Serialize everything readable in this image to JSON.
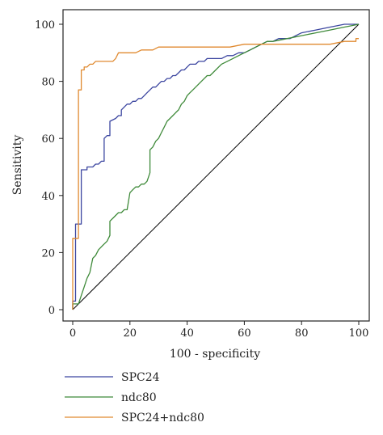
{
  "chart_data": {
    "type": "line",
    "title": "",
    "xlabel": "100 - specificity",
    "ylabel": "Sensitivity",
    "xlim": [
      0,
      100
    ],
    "ylim": [
      0,
      100
    ],
    "xticks": [
      0,
      20,
      40,
      60,
      80,
      100
    ],
    "yticks": [
      0,
      20,
      40,
      60,
      80,
      100
    ],
    "grid": false,
    "legend_position": "bottom",
    "series": [
      {
        "name": "SPC24",
        "color": "#3c46a0",
        "x": [
          0,
          0,
          1,
          1,
          2,
          2,
          3,
          3,
          5,
          5,
          7,
          8,
          9,
          10,
          11,
          11,
          12,
          13,
          13,
          15,
          16,
          17,
          17,
          18,
          19,
          20,
          21,
          22,
          23,
          24,
          25,
          26,
          27,
          28,
          29,
          30,
          31,
          32,
          33,
          34,
          35,
          36,
          37,
          38,
          39,
          40,
          41,
          42,
          43,
          44,
          45,
          46,
          47,
          48,
          50,
          52,
          54,
          56,
          58,
          60,
          62,
          64,
          66,
          68,
          70,
          72,
          74,
          76,
          78,
          80,
          85,
          90,
          95,
          100
        ],
        "y": [
          0,
          3,
          3,
          30,
          30,
          30,
          30,
          49,
          49,
          50,
          50,
          51,
          51,
          52,
          52,
          60,
          61,
          61,
          66,
          67,
          68,
          68,
          70,
          71,
          72,
          72,
          73,
          73,
          74,
          74,
          75,
          76,
          77,
          78,
          78,
          79,
          80,
          80,
          81,
          81,
          82,
          82,
          83,
          84,
          84,
          85,
          86,
          86,
          86,
          87,
          87,
          87,
          88,
          88,
          88,
          88,
          89,
          89,
          90,
          90,
          91,
          92,
          93,
          94,
          94,
          95,
          95,
          95,
          96,
          97,
          98,
          99,
          100,
          100
        ]
      },
      {
        "name": "ndc80",
        "color": "#3f8a3a",
        "x": [
          0,
          0,
          1,
          2,
          3,
          4,
          5,
          6,
          7,
          8,
          9,
          10,
          11,
          12,
          13,
          13,
          14,
          15,
          16,
          17,
          18,
          19,
          20,
          21,
          22,
          23,
          24,
          25,
          26,
          27,
          27,
          28,
          29,
          30,
          31,
          32,
          33,
          34,
          35,
          36,
          37,
          38,
          39,
          40,
          41,
          42,
          43,
          44,
          45,
          46,
          47,
          48,
          49,
          50,
          52,
          54,
          56,
          58,
          60,
          62,
          64,
          66,
          68,
          70,
          75,
          80,
          85,
          90,
          95,
          100
        ],
        "y": [
          0,
          2,
          2,
          2,
          5,
          8,
          11,
          13,
          18,
          19,
          21,
          22,
          23,
          24,
          26,
          31,
          32,
          33,
          34,
          34,
          35,
          35,
          41,
          42,
          43,
          43,
          44,
          44,
          45,
          48,
          56,
          57,
          59,
          60,
          62,
          64,
          66,
          67,
          68,
          69,
          70,
          72,
          73,
          75,
          76,
          77,
          78,
          79,
          80,
          81,
          82,
          82,
          83,
          84,
          86,
          87,
          88,
          89,
          90,
          91,
          92,
          93,
          94,
          94,
          95,
          96,
          97,
          98,
          99,
          100
        ]
      },
      {
        "name": "SPC24+ndc80",
        "color": "#e08a30",
        "x": [
          0,
          0,
          1,
          2,
          2,
          3,
          3,
          4,
          4,
          5,
          6,
          7,
          8,
          10,
          12,
          14,
          15,
          16,
          18,
          20,
          22,
          24,
          26,
          28,
          30,
          35,
          40,
          45,
          50,
          55,
          60,
          65,
          70,
          75,
          80,
          85,
          90,
          95,
          99,
          99,
          100
        ],
        "y": [
          0,
          25,
          25,
          25,
          77,
          77,
          84,
          84,
          85,
          85,
          86,
          86,
          87,
          87,
          87,
          87,
          88,
          90,
          90,
          90,
          90,
          91,
          91,
          91,
          92,
          92,
          92,
          92,
          92,
          92,
          93,
          93,
          93,
          93,
          93,
          93,
          93,
          94,
          94,
          95,
          95
        ]
      }
    ],
    "reference_line": {
      "x": [
        0,
        100
      ],
      "y": [
        0,
        100
      ],
      "color": "#000000"
    }
  }
}
